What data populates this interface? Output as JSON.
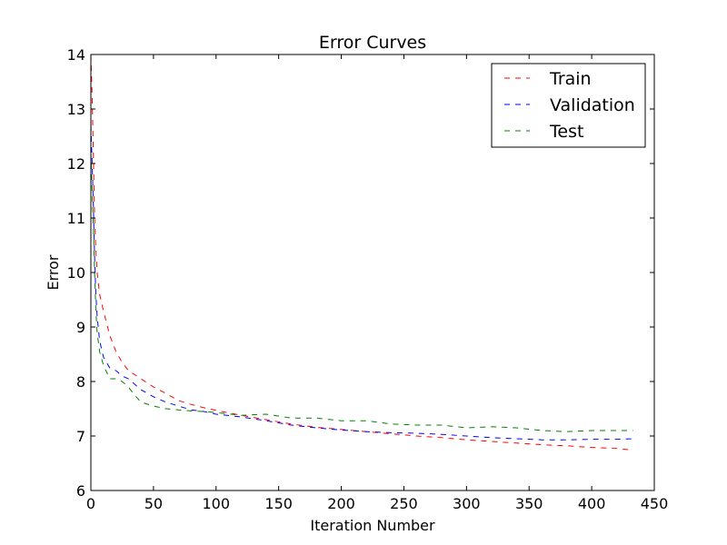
{
  "chart_data": {
    "type": "line",
    "title": "Error Curves",
    "xlabel": "Iteration Number",
    "ylabel": "Error",
    "xlim": [
      0,
      450
    ],
    "ylim": [
      6,
      14
    ],
    "xticks": [
      0,
      50,
      100,
      150,
      200,
      250,
      300,
      350,
      400,
      450
    ],
    "yticks": [
      6,
      7,
      8,
      9,
      10,
      11,
      12,
      13,
      14
    ],
    "legend_position": "top-right",
    "grid": false,
    "series": [
      {
        "name": "Train",
        "color": "#ff0000",
        "style": "dashed",
        "x": [
          0,
          1,
          2,
          3,
          4,
          5,
          7,
          10,
          15,
          20,
          25,
          30,
          40,
          50,
          60,
          70,
          80,
          90,
          100,
          120,
          140,
          160,
          180,
          200,
          220,
          240,
          260,
          280,
          300,
          320,
          340,
          360,
          380,
          400,
          420,
          433
        ],
        "y": [
          14.0,
          13.2,
          12.1,
          11.0,
          10.4,
          10.0,
          9.6,
          9.3,
          8.85,
          8.55,
          8.35,
          8.2,
          8.05,
          7.9,
          7.78,
          7.65,
          7.58,
          7.52,
          7.47,
          7.38,
          7.3,
          7.22,
          7.16,
          7.12,
          7.08,
          7.04,
          7.0,
          6.97,
          6.93,
          6.9,
          6.87,
          6.84,
          6.82,
          6.79,
          6.77,
          6.74
        ]
      },
      {
        "name": "Validation",
        "color": "#0000ff",
        "style": "dashed",
        "x": [
          0,
          1,
          2,
          3,
          4,
          5,
          7,
          10,
          15,
          20,
          25,
          30,
          35,
          40,
          50,
          60,
          70,
          80,
          90,
          100,
          120,
          140,
          160,
          180,
          200,
          220,
          240,
          260,
          280,
          300,
          320,
          340,
          360,
          380,
          400,
          420,
          433
        ],
        "y": [
          12.7,
          12.0,
          11.2,
          10.3,
          9.6,
          9.2,
          8.75,
          8.45,
          8.25,
          8.2,
          8.1,
          8.05,
          7.95,
          7.85,
          7.72,
          7.62,
          7.55,
          7.48,
          7.45,
          7.4,
          7.35,
          7.28,
          7.2,
          7.15,
          7.11,
          7.08,
          7.06,
          7.05,
          7.03,
          7.0,
          6.97,
          6.95,
          6.93,
          6.93,
          6.94,
          6.94,
          6.95
        ]
      },
      {
        "name": "Test",
        "color": "#008000",
        "style": "dashed",
        "x": [
          0,
          1,
          2,
          3,
          4,
          5,
          7,
          10,
          15,
          20,
          25,
          30,
          35,
          40,
          50,
          60,
          70,
          80,
          90,
          100,
          120,
          140,
          160,
          180,
          200,
          220,
          240,
          260,
          280,
          300,
          320,
          340,
          360,
          380,
          400,
          420,
          433
        ],
        "y": [
          12.2,
          11.5,
          10.8,
          10.0,
          9.3,
          8.9,
          8.55,
          8.3,
          8.05,
          8.05,
          8.0,
          7.9,
          7.75,
          7.62,
          7.55,
          7.5,
          7.48,
          7.46,
          7.45,
          7.43,
          7.38,
          7.4,
          7.33,
          7.33,
          7.28,
          7.28,
          7.22,
          7.2,
          7.2,
          7.15,
          7.17,
          7.15,
          7.1,
          7.08,
          7.1,
          7.1,
          7.1
        ]
      }
    ]
  }
}
